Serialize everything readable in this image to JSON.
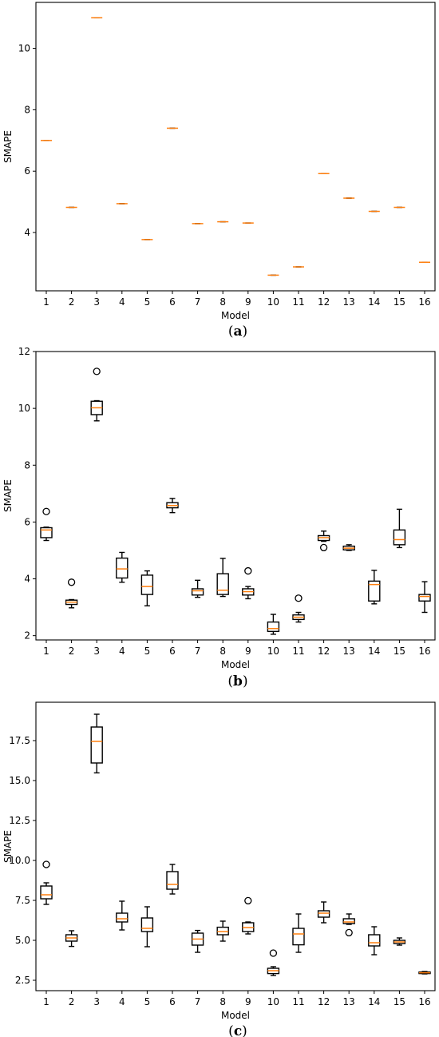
{
  "chart_data": [
    {
      "type": "box",
      "caption": {
        "open": "(",
        "letter": "a",
        "close": ")"
      },
      "xlabel": "Model",
      "ylabel": "SMAPE",
      "categories": [
        "1",
        "2",
        "3",
        "4",
        "5",
        "6",
        "7",
        "8",
        "9",
        "10",
        "11",
        "12",
        "13",
        "14",
        "15",
        "16"
      ],
      "ylim": [
        2.1,
        11.5
      ],
      "yticks": [
        4,
        6,
        8,
        10
      ],
      "ytick_labels": [
        "4",
        "6",
        "8",
        "10"
      ],
      "grid": false,
      "legend": "none",
      "colors": {
        "box": "#000000",
        "median": "#ff7f0e"
      },
      "series": [
        {
          "q1": 7.0,
          "median": 7.0,
          "q3": 7.0,
          "whisker_low": 7.0,
          "whisker_high": 7.0,
          "outliers": []
        },
        {
          "q1": 4.82,
          "median": 4.82,
          "q3": 4.82,
          "whisker_low": 4.82,
          "whisker_high": 4.82,
          "outliers": []
        },
        {
          "q1": 11.0,
          "median": 11.0,
          "q3": 11.0,
          "whisker_low": 11.0,
          "whisker_high": 11.0,
          "outliers": []
        },
        {
          "q1": 4.94,
          "median": 4.94,
          "q3": 4.94,
          "whisker_low": 4.94,
          "whisker_high": 4.94,
          "outliers": []
        },
        {
          "q1": 3.77,
          "median": 3.77,
          "q3": 3.77,
          "whisker_low": 3.77,
          "whisker_high": 3.77,
          "outliers": []
        },
        {
          "q1": 7.4,
          "median": 7.4,
          "q3": 7.4,
          "whisker_low": 7.4,
          "whisker_high": 7.4,
          "outliers": []
        },
        {
          "q1": 4.29,
          "median": 4.29,
          "q3": 4.29,
          "whisker_low": 4.29,
          "whisker_high": 4.29,
          "outliers": []
        },
        {
          "q1": 4.35,
          "median": 4.35,
          "q3": 4.35,
          "whisker_low": 4.35,
          "whisker_high": 4.35,
          "outliers": []
        },
        {
          "q1": 4.31,
          "median": 4.31,
          "q3": 4.31,
          "whisker_low": 4.31,
          "whisker_high": 4.31,
          "outliers": []
        },
        {
          "q1": 2.61,
          "median": 2.61,
          "q3": 2.61,
          "whisker_low": 2.61,
          "whisker_high": 2.61,
          "outliers": []
        },
        {
          "q1": 2.88,
          "median": 2.88,
          "q3": 2.88,
          "whisker_low": 2.88,
          "whisker_high": 2.88,
          "outliers": []
        },
        {
          "q1": 5.92,
          "median": 5.92,
          "q3": 5.92,
          "whisker_low": 5.92,
          "whisker_high": 5.92,
          "outliers": []
        },
        {
          "q1": 5.12,
          "median": 5.12,
          "q3": 5.12,
          "whisker_low": 5.12,
          "whisker_high": 5.12,
          "outliers": []
        },
        {
          "q1": 4.69,
          "median": 4.69,
          "q3": 4.69,
          "whisker_low": 4.69,
          "whisker_high": 4.69,
          "outliers": []
        },
        {
          "q1": 4.82,
          "median": 4.82,
          "q3": 4.82,
          "whisker_low": 4.82,
          "whisker_high": 4.82,
          "outliers": []
        },
        {
          "q1": 3.03,
          "median": 3.03,
          "q3": 3.03,
          "whisker_low": 3.03,
          "whisker_high": 3.03,
          "outliers": []
        }
      ]
    },
    {
      "type": "box",
      "caption": {
        "open": "(",
        "letter": "b",
        "close": ")"
      },
      "xlabel": "Model",
      "ylabel": "SMAPE",
      "categories": [
        "1",
        "2",
        "3",
        "4",
        "5",
        "6",
        "7",
        "8",
        "9",
        "10",
        "11",
        "12",
        "13",
        "14",
        "15",
        "16"
      ],
      "ylim": [
        1.85,
        12.0
      ],
      "yticks": [
        2,
        4,
        6,
        8,
        10,
        12
      ],
      "ytick_labels": [
        "2",
        "4",
        "6",
        "8",
        "10",
        "12"
      ],
      "grid": false,
      "legend": "none",
      "colors": {
        "box": "#000000",
        "median": "#ff7f0e"
      },
      "series": [
        {
          "q1": 5.45,
          "median": 5.72,
          "q3": 5.8,
          "whisker_low": 5.35,
          "whisker_high": 5.82,
          "outliers": [
            6.37
          ]
        },
        {
          "q1": 3.1,
          "median": 3.18,
          "q3": 3.25,
          "whisker_low": 2.98,
          "whisker_high": 3.27,
          "outliers": [
            3.88
          ]
        },
        {
          "q1": 9.78,
          "median": 10.02,
          "q3": 10.25,
          "whisker_low": 9.56,
          "whisker_high": 10.27,
          "outliers": [
            11.3
          ]
        },
        {
          "q1": 4.03,
          "median": 4.35,
          "q3": 4.73,
          "whisker_low": 3.88,
          "whisker_high": 4.93,
          "outliers": []
        },
        {
          "q1": 3.45,
          "median": 3.73,
          "q3": 4.13,
          "whisker_low": 3.05,
          "whisker_high": 4.28,
          "outliers": []
        },
        {
          "q1": 6.5,
          "median": 6.58,
          "q3": 6.68,
          "whisker_low": 6.33,
          "whisker_high": 6.83,
          "outliers": []
        },
        {
          "q1": 3.43,
          "median": 3.58,
          "q3": 3.65,
          "whisker_low": 3.35,
          "whisker_high": 3.95,
          "outliers": []
        },
        {
          "q1": 3.45,
          "median": 3.6,
          "q3": 4.18,
          "whisker_low": 3.38,
          "whisker_high": 4.72,
          "outliers": []
        },
        {
          "q1": 3.43,
          "median": 3.55,
          "q3": 3.65,
          "whisker_low": 3.3,
          "whisker_high": 3.73,
          "outliers": [
            4.28
          ]
        },
        {
          "q1": 2.15,
          "median": 2.25,
          "q3": 2.48,
          "whisker_low": 2.05,
          "whisker_high": 2.75,
          "outliers": []
        },
        {
          "q1": 2.57,
          "median": 2.65,
          "q3": 2.73,
          "whisker_low": 2.48,
          "whisker_high": 2.82,
          "outliers": [
            3.32
          ]
        },
        {
          "q1": 5.35,
          "median": 5.45,
          "q3": 5.52,
          "whisker_low": 5.32,
          "whisker_high": 5.68,
          "outliers": [
            5.1
          ]
        },
        {
          "q1": 5.02,
          "median": 5.08,
          "q3": 5.15,
          "whisker_low": 5.0,
          "whisker_high": 5.2,
          "outliers": []
        },
        {
          "q1": 3.22,
          "median": 3.8,
          "q3": 3.92,
          "whisker_low": 3.12,
          "whisker_high": 4.3,
          "outliers": []
        },
        {
          "q1": 5.2,
          "median": 5.38,
          "q3": 5.72,
          "whisker_low": 5.1,
          "whisker_high": 6.45,
          "outliers": []
        },
        {
          "q1": 3.22,
          "median": 3.38,
          "q3": 3.45,
          "whisker_low": 2.82,
          "whisker_high": 3.9,
          "outliers": []
        }
      ]
    },
    {
      "type": "box",
      "caption": {
        "open": "(",
        "letter": "c",
        "close": ")"
      },
      "xlabel": "Model",
      "ylabel": "SMAPE",
      "categories": [
        "1",
        "2",
        "3",
        "4",
        "5",
        "6",
        "7",
        "8",
        "9",
        "10",
        "11",
        "12",
        "13",
        "14",
        "15",
        "16"
      ],
      "ylim": [
        1.85,
        19.9
      ],
      "yticks": [
        2.5,
        5.0,
        7.5,
        10.0,
        12.5,
        15.0,
        17.5
      ],
      "ytick_labels": [
        "2.5",
        "5.0",
        "7.5",
        "10.0",
        "12.5",
        "15.0",
        "17.5"
      ],
      "grid": false,
      "legend": "none",
      "colors": {
        "box": "#000000",
        "median": "#ff7f0e"
      },
      "series": [
        {
          "q1": 7.6,
          "median": 7.85,
          "q3": 8.4,
          "whisker_low": 7.25,
          "whisker_high": 8.6,
          "outliers": [
            9.75
          ]
        },
        {
          "q1": 4.95,
          "median": 5.15,
          "q3": 5.35,
          "whisker_low": 4.62,
          "whisker_high": 5.6,
          "outliers": []
        },
        {
          "q1": 16.1,
          "median": 17.45,
          "q3": 18.35,
          "whisker_low": 15.48,
          "whisker_high": 19.15,
          "outliers": []
        },
        {
          "q1": 6.15,
          "median": 6.35,
          "q3": 6.7,
          "whisker_low": 5.65,
          "whisker_high": 7.45,
          "outliers": []
        },
        {
          "q1": 5.55,
          "median": 5.75,
          "q3": 6.4,
          "whisker_low": 4.6,
          "whisker_high": 7.1,
          "outliers": []
        },
        {
          "q1": 8.2,
          "median": 8.5,
          "q3": 9.3,
          "whisker_low": 7.9,
          "whisker_high": 9.75,
          "outliers": []
        },
        {
          "q1": 4.7,
          "median": 5.08,
          "q3": 5.45,
          "whisker_low": 4.25,
          "whisker_high": 5.62,
          "outliers": []
        },
        {
          "q1": 5.35,
          "median": 5.55,
          "q3": 5.82,
          "whisker_low": 4.95,
          "whisker_high": 6.2,
          "outliers": []
        },
        {
          "q1": 5.55,
          "median": 5.8,
          "q3": 6.1,
          "whisker_low": 5.4,
          "whisker_high": 6.15,
          "outliers": [
            7.48
          ]
        },
        {
          "q1": 2.92,
          "median": 3.1,
          "q3": 3.25,
          "whisker_low": 2.8,
          "whisker_high": 3.35,
          "outliers": [
            4.2
          ]
        },
        {
          "q1": 4.72,
          "median": 5.4,
          "q3": 5.75,
          "whisker_low": 4.25,
          "whisker_high": 6.65,
          "outliers": []
        },
        {
          "q1": 6.45,
          "median": 6.7,
          "q3": 6.85,
          "whisker_low": 6.1,
          "whisker_high": 7.4,
          "outliers": []
        },
        {
          "q1": 6.05,
          "median": 6.15,
          "q3": 6.35,
          "whisker_low": 6.0,
          "whisker_high": 6.65,
          "outliers": [
            5.48
          ]
        },
        {
          "q1": 4.65,
          "median": 4.85,
          "q3": 5.35,
          "whisker_low": 4.1,
          "whisker_high": 5.85,
          "outliers": []
        },
        {
          "q1": 4.8,
          "median": 4.9,
          "q3": 5.0,
          "whisker_low": 4.7,
          "whisker_high": 5.15,
          "outliers": []
        },
        {
          "q1": 2.92,
          "median": 2.97,
          "q3": 3.02,
          "whisker_low": 2.9,
          "whisker_high": 3.05,
          "outliers": []
        }
      ]
    }
  ]
}
